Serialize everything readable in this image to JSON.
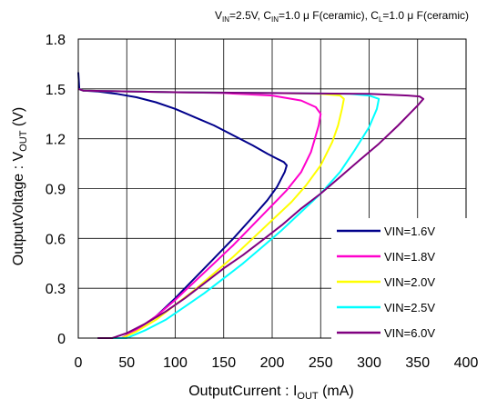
{
  "chart_data": {
    "type": "line",
    "conditions": {
      "vin": {
        "main": "V",
        "sub": "IN",
        "rest": "=2.5V, "
      },
      "cin": {
        "main": "C",
        "sub": "IN",
        "rest": "=1.0 μ F(ceramic), "
      },
      "cl": {
        "main": "C",
        "sub": "L",
        "rest": "=1.0 μ F(ceramic)"
      }
    },
    "xlabel": {
      "main": "OutputCurrent : I",
      "sub": "OUT",
      "rest": " (mA)"
    },
    "ylabel": {
      "main": "OutputVoltage : V",
      "sub": "OUT",
      "rest": " (V)"
    },
    "xlim": [
      0,
      400
    ],
    "ylim": [
      0,
      1.8
    ],
    "xticks": [
      "0",
      "50",
      "100",
      "150",
      "200",
      "250",
      "300",
      "350",
      "400"
    ],
    "yticks": [
      "0",
      "0.3",
      "0.6",
      "0.9",
      "1.2",
      "1.5",
      "1.8"
    ],
    "grid": true,
    "legend_position": "bottom-right",
    "series": [
      {
        "name": "VIN=1.6V",
        "color": "#00008B",
        "x": [
          0,
          1,
          5,
          20,
          40,
          60,
          80,
          100,
          120,
          140,
          160,
          180,
          195,
          205,
          212,
          215,
          213,
          205,
          195,
          180,
          160,
          140,
          120,
          100,
          80,
          60,
          45,
          30,
          20
        ],
        "y": [
          1.6,
          1.5,
          1.49,
          1.485,
          1.47,
          1.45,
          1.42,
          1.38,
          1.33,
          1.28,
          1.22,
          1.16,
          1.11,
          1.08,
          1.06,
          1.04,
          1.0,
          0.91,
          0.83,
          0.73,
          0.6,
          0.48,
          0.36,
          0.24,
          0.13,
          0.05,
          0.0,
          0.0,
          0.0
        ]
      },
      {
        "name": "VIN=1.8V",
        "color": "#FF00CC",
        "x": [
          0,
          5,
          50,
          100,
          150,
          200,
          230,
          245,
          250,
          248,
          244,
          240,
          230,
          215,
          200,
          180,
          160,
          140,
          120,
          100,
          80,
          60,
          45,
          30,
          20
        ],
        "y": [
          1.5,
          1.49,
          1.485,
          1.48,
          1.475,
          1.46,
          1.43,
          1.39,
          1.35,
          1.28,
          1.2,
          1.12,
          1.0,
          0.89,
          0.8,
          0.68,
          0.56,
          0.45,
          0.34,
          0.23,
          0.13,
          0.05,
          0.0,
          0.0,
          0.0
        ]
      },
      {
        "name": "VIN=2.0V",
        "color": "#FFFF00",
        "x": [
          0,
          5,
          100,
          200,
          250,
          270,
          274,
          272,
          268,
          262,
          250,
          235,
          220,
          200,
          180,
          160,
          140,
          120,
          100,
          80,
          60,
          45,
          30,
          20
        ],
        "y": [
          1.5,
          1.49,
          1.48,
          1.475,
          1.47,
          1.46,
          1.44,
          1.38,
          1.28,
          1.18,
          1.04,
          0.92,
          0.82,
          0.71,
          0.6,
          0.49,
          0.39,
          0.29,
          0.2,
          0.11,
          0.04,
          0.0,
          0.0,
          0.0
        ]
      },
      {
        "name": "VIN=2.5V",
        "color": "#00FFFF",
        "x": [
          0,
          5,
          100,
          200,
          280,
          300,
          310,
          308,
          300,
          285,
          270,
          250,
          230,
          210,
          190,
          170,
          150,
          130,
          110,
          90,
          70,
          50,
          35,
          20
        ],
        "y": [
          1.5,
          1.49,
          1.48,
          1.475,
          1.47,
          1.46,
          1.44,
          1.38,
          1.27,
          1.13,
          1.0,
          0.87,
          0.76,
          0.65,
          0.55,
          0.45,
          0.36,
          0.27,
          0.19,
          0.11,
          0.05,
          0.0,
          0.0,
          0.0
        ]
      },
      {
        "name": "VIN=6.0V",
        "color": "#800080",
        "x": [
          0,
          5,
          100,
          200,
          300,
          340,
          352,
          356,
          350,
          330,
          310,
          290,
          270,
          250,
          230,
          210,
          190,
          170,
          150,
          130,
          110,
          90,
          70,
          50,
          35,
          20
        ],
        "y": [
          1.5,
          1.49,
          1.48,
          1.475,
          1.47,
          1.46,
          1.455,
          1.44,
          1.4,
          1.28,
          1.17,
          1.07,
          0.97,
          0.87,
          0.78,
          0.68,
          0.59,
          0.5,
          0.42,
          0.33,
          0.24,
          0.16,
          0.09,
          0.03,
          0.0,
          0.0
        ]
      }
    ]
  }
}
